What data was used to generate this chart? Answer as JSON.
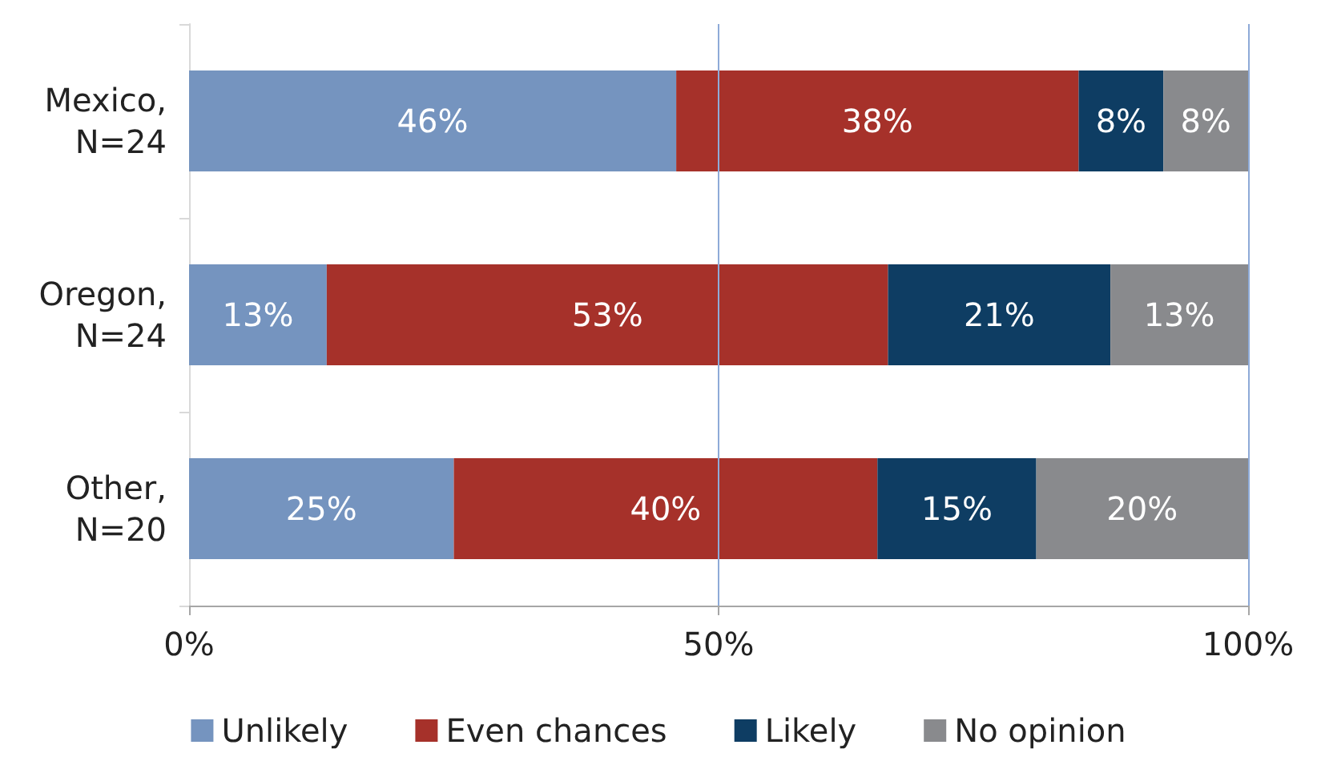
{
  "chart_data": {
    "type": "bar",
    "orientation": "horizontal",
    "stacked": true,
    "categories": [
      "Mexico, N=24",
      "Oregon, N=24",
      "Other, N=20"
    ],
    "series": [
      {
        "name": "Unlikely",
        "color": "#7594bf",
        "values": [
          46,
          13,
          25
        ],
        "value_labels": [
          "46%",
          "13%",
          "25%"
        ]
      },
      {
        "name": "Even chances",
        "color": "#a6312a",
        "values": [
          38,
          53,
          40
        ],
        "value_labels": [
          "38%",
          "53%",
          "40%"
        ]
      },
      {
        "name": "Likely",
        "color": "#0e3d63",
        "values": [
          8,
          21,
          15
        ],
        "value_labels": [
          "8%",
          "21%",
          "15%"
        ]
      },
      {
        "name": "No opinion",
        "color": "#898a8d",
        "values": [
          8,
          13,
          20
        ],
        "value_labels": [
          "8%",
          "13%",
          "20%"
        ]
      }
    ],
    "xlim": [
      0,
      100
    ],
    "xticks": [
      {
        "value": 0,
        "label": "0%"
      },
      {
        "value": 50,
        "label": "50%"
      },
      {
        "value": 100,
        "label": "100%"
      }
    ],
    "ref_lines": [
      {
        "axis": "x",
        "value": 50,
        "color": "#8eaad8"
      },
      {
        "axis": "x",
        "value": 100,
        "color": "#8eaad8"
      }
    ],
    "legend": "bottom"
  }
}
